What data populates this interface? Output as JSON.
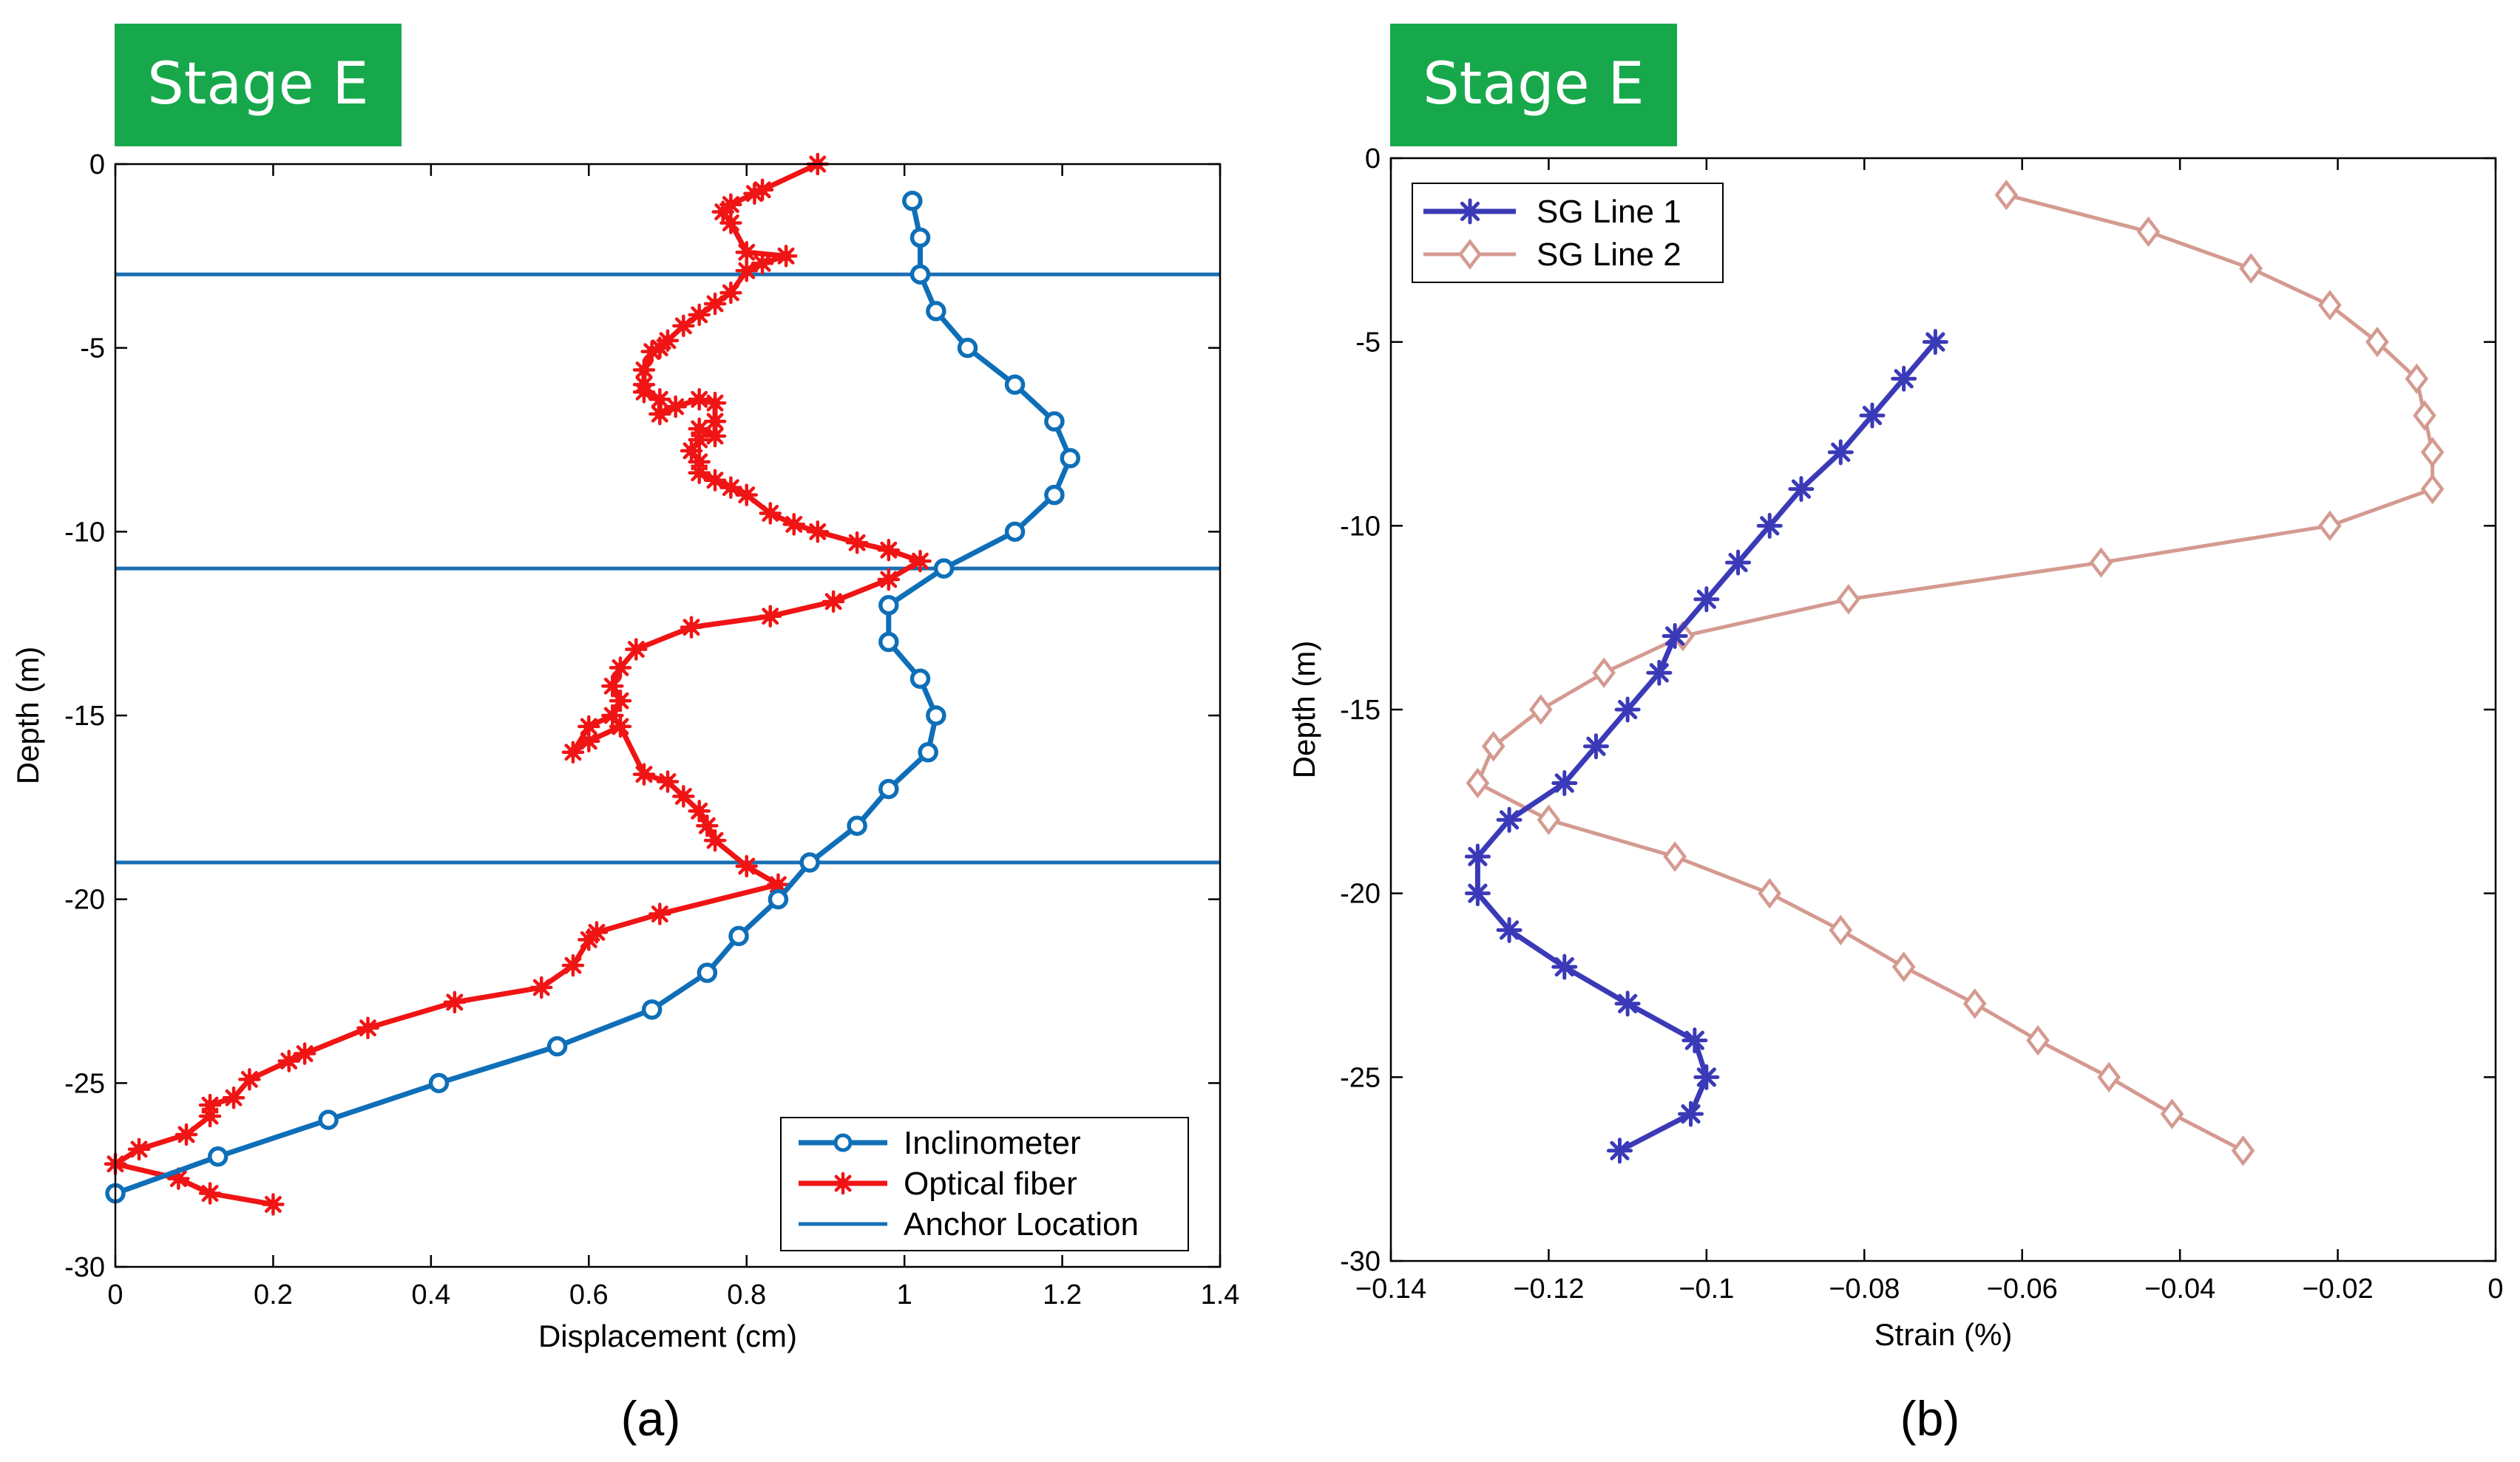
{
  "colors": {
    "badge": "#18A84C",
    "inclinometer": "#0E6FB8",
    "optical_fiber": "#F01414",
    "anchor": "#1A6FB4",
    "sg_line_1": "#3A3AB8",
    "sg_line_2": "#D49A90"
  },
  "chart_data": [
    {
      "type": "line",
      "badge": "Stage E",
      "caption": "(a)",
      "xlabel": "Displacement (cm)",
      "ylabel": "Depth (m)",
      "xlim": [
        0,
        1.4
      ],
      "ylim": [
        -30,
        0
      ],
      "xticks": [
        0,
        0.2,
        0.4,
        0.6,
        0.8,
        1,
        1.2,
        1.4
      ],
      "xtick_labels": [
        "0",
        "0.2",
        "0.4",
        "0.6",
        "0.8",
        "1",
        "1.2",
        "1.4"
      ],
      "yticks": [
        0,
        -5,
        -10,
        -15,
        -20,
        -25,
        -30
      ],
      "ytick_labels": [
        "0",
        "-5",
        "-10",
        "-15",
        "-20",
        "-25",
        "-30"
      ],
      "legend_position": "bottom-right",
      "series": [
        {
          "name": "Inclinometer",
          "marker": "circle",
          "x": [
            1.01,
            1.02,
            1.02,
            1.04,
            1.08,
            1.14,
            1.19,
            1.21,
            1.19,
            1.14,
            1.05,
            0.98,
            0.98,
            1.02,
            1.04,
            1.03,
            0.98,
            0.94,
            0.88,
            0.84,
            0.79,
            0.75,
            0.68,
            0.56,
            0.41,
            0.27,
            0.13,
            0.0
          ],
          "y": [
            -1,
            -2,
            -3,
            -4,
            -5,
            -6,
            -7,
            -8,
            -9,
            -10,
            -11,
            -12,
            -13,
            -14,
            -15,
            -16,
            -17,
            -18,
            -19,
            -20,
            -21,
            -22,
            -23,
            -24,
            -25,
            -26,
            -27,
            -28
          ]
        },
        {
          "name": "Optical fiber",
          "marker": "asterisk",
          "x": [
            0.89,
            0.82,
            0.81,
            0.78,
            0.77,
            0.78,
            0.8,
            0.85,
            0.82,
            0.8,
            0.78,
            0.76,
            0.74,
            0.72,
            0.7,
            0.69,
            0.68,
            0.67,
            0.67,
            0.67,
            0.69,
            0.69,
            0.71,
            0.74,
            0.76,
            0.76,
            0.76,
            0.74,
            0.74,
            0.73,
            0.74,
            0.74,
            0.76,
            0.78,
            0.8,
            0.83,
            0.86,
            0.89,
            0.94,
            0.98,
            1.02,
            0.98,
            0.91,
            0.83,
            0.73,
            0.66,
            0.64,
            0.63,
            0.64,
            0.63,
            0.6,
            0.58,
            0.6,
            0.64,
            0.67,
            0.7,
            0.72,
            0.74,
            0.75,
            0.76,
            0.8,
            0.84,
            0.69,
            0.61,
            0.6,
            0.58,
            0.54,
            0.43,
            0.32,
            0.24,
            0.22,
            0.17,
            0.15,
            0.12,
            0.12,
            0.09,
            0.03,
            0.0,
            0.08,
            0.12,
            0.2
          ],
          "y": [
            0,
            -0.7,
            -0.8,
            -1.1,
            -1.3,
            -1.6,
            -2.4,
            -2.5,
            -2.7,
            -2.9,
            -3.5,
            -3.8,
            -4.1,
            -4.4,
            -4.8,
            -5.0,
            -5.1,
            -5.6,
            -6.0,
            -6.2,
            -6.4,
            -6.8,
            -6.6,
            -6.4,
            -6.5,
            -7.0,
            -7.4,
            -7.2,
            -7.5,
            -7.8,
            -8.1,
            -8.4,
            -8.6,
            -8.8,
            -9.0,
            -9.5,
            -9.8,
            -10.0,
            -10.3,
            -10.5,
            -10.8,
            -11.3,
            -11.9,
            -12.3,
            -12.6,
            -13.2,
            -13.7,
            -14.2,
            -14.6,
            -15.0,
            -15.3,
            -16.0,
            -15.7,
            -15.3,
            -16.6,
            -16.8,
            -17.2,
            -17.6,
            -18.0,
            -18.4,
            -19.1,
            -19.6,
            -20.4,
            -20.9,
            -21.1,
            -21.8,
            -22.4,
            -22.8,
            -23.5,
            -24.2,
            -24.4,
            -24.9,
            -25.4,
            -25.6,
            -25.9,
            -26.4,
            -26.8,
            -27.2,
            -27.6,
            -28.0,
            -28.3
          ]
        }
      ],
      "anchor_location": {
        "name": "Anchor Location",
        "depths": [
          -3,
          -11,
          -19
        ]
      }
    },
    {
      "type": "line",
      "badge": "Stage E",
      "caption": "(b)",
      "xlabel": "Strain (%)",
      "ylabel": "Depth (m)",
      "xlim": [
        -0.14,
        0
      ],
      "ylim": [
        -30,
        0
      ],
      "xticks": [
        -0.14,
        -0.12,
        -0.1,
        -0.08,
        -0.06,
        -0.04,
        -0.02,
        0
      ],
      "xtick_labels": [
        "−0.14",
        "−0.12",
        "−0.1",
        "−0.08",
        "−0.06",
        "−0.04",
        "−0.02",
        "0"
      ],
      "yticks": [
        0,
        -5,
        -10,
        -15,
        -20,
        -25,
        -30
      ],
      "ytick_labels": [
        "0",
        "-5",
        "-10",
        "-15",
        "-20",
        "-25",
        "-30"
      ],
      "legend_position": "top-left",
      "series": [
        {
          "name": "SG Line 1",
          "marker": "asterisk",
          "x": [
            -0.071,
            -0.075,
            -0.079,
            -0.083,
            -0.088,
            -0.092,
            -0.096,
            -0.1,
            -0.104,
            -0.106,
            -0.11,
            -0.114,
            -0.118,
            -0.125,
            -0.129,
            -0.129,
            -0.125,
            -0.118,
            -0.11,
            -0.1015,
            -0.1,
            -0.102,
            -0.111
          ],
          "y": [
            -5,
            -6,
            -7,
            -8,
            -9,
            -10,
            -11,
            -12,
            -13,
            -14,
            -15,
            -16,
            -17,
            -18,
            -19,
            -20,
            -21,
            -22,
            -23,
            -24,
            -25,
            -26,
            -27
          ]
        },
        {
          "name": "SG Line 2",
          "marker": "diamond",
          "x": [
            -0.062,
            -0.044,
            -0.031,
            -0.021,
            -0.015,
            -0.01,
            -0.009,
            -0.008,
            -0.008,
            -0.021,
            -0.05,
            -0.082,
            -0.103,
            -0.113,
            -0.121,
            -0.127,
            -0.129,
            -0.12,
            -0.104,
            -0.092,
            -0.083,
            -0.075,
            -0.066,
            -0.058,
            -0.049,
            -0.041,
            -0.032
          ],
          "y": [
            -1,
            -2,
            -3,
            -4,
            -5,
            -6,
            -7,
            -8,
            -9,
            -10,
            -11,
            -12,
            -13,
            -14,
            -15,
            -16,
            -17,
            -18,
            -19,
            -20,
            -21,
            -22,
            -23,
            -24,
            -25,
            -26,
            -27
          ]
        }
      ]
    }
  ]
}
